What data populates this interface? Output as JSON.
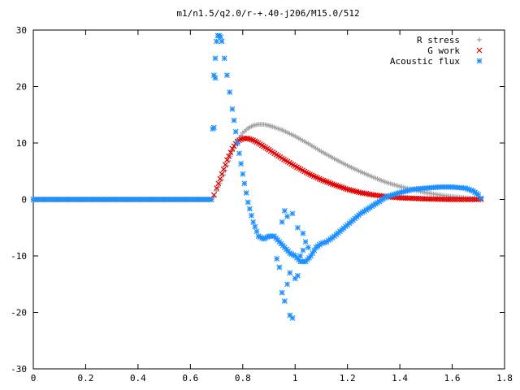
{
  "chart_data": {
    "type": "scatter",
    "title": "m1/n1.5/q2.0/r-+.40-j206/M15.0/512",
    "xlabel": "",
    "ylabel": "",
    "xlim": [
      0,
      1.8
    ],
    "ylim": [
      -30,
      30
    ],
    "x_ticks": [
      "0",
      "0.2",
      "0.4",
      "0.6",
      "0.8",
      "1",
      "1.2",
      "1.4",
      "1.6",
      "1.8"
    ],
    "y_ticks": [
      "30",
      "20",
      "10",
      "0",
      "-10",
      "-20",
      "-30"
    ],
    "x_tick_values": [
      0,
      0.2,
      0.4,
      0.6,
      0.8,
      1.0,
      1.2,
      1.4,
      1.6,
      1.8
    ],
    "y_tick_values": [
      30,
      20,
      10,
      0,
      -10,
      -20,
      -30
    ],
    "grid": false,
    "legend_position": "top-right",
    "series": [
      {
        "name": "R stress",
        "marker": "plus",
        "color": "#a0a0a0",
        "x": [
          0.0,
          0.1,
          0.2,
          0.3,
          0.4,
          0.5,
          0.6,
          0.68,
          0.69,
          0.7,
          0.72,
          0.74,
          0.76,
          0.78,
          0.8,
          0.82,
          0.84,
          0.86,
          0.88,
          0.9,
          0.92,
          0.95,
          1.0,
          1.05,
          1.1,
          1.15,
          1.2,
          1.25,
          1.3,
          1.35,
          1.4,
          1.45,
          1.5,
          1.55,
          1.6,
          1.65,
          1.7,
          1.71
        ],
        "y": [
          0,
          0,
          0,
          0,
          0,
          0,
          0,
          0,
          0.5,
          1.5,
          3.5,
          6.0,
          8.5,
          10.5,
          11.8,
          12.6,
          13.1,
          13.3,
          13.3,
          13.1,
          12.8,
          12.3,
          11.2,
          9.9,
          8.5,
          7.2,
          6.0,
          4.9,
          3.9,
          3.0,
          2.3,
          1.7,
          1.2,
          0.8,
          0.5,
          0.3,
          0.1,
          0
        ]
      },
      {
        "name": "G work",
        "marker": "cross",
        "color": "#e00000",
        "x": [
          0.0,
          0.1,
          0.2,
          0.3,
          0.4,
          0.5,
          0.6,
          0.68,
          0.69,
          0.7,
          0.72,
          0.74,
          0.76,
          0.78,
          0.8,
          0.82,
          0.84,
          0.86,
          0.88,
          0.9,
          0.95,
          1.0,
          1.05,
          1.1,
          1.15,
          1.2,
          1.25,
          1.3,
          1.35,
          1.4,
          1.45,
          1.5,
          1.55,
          1.6,
          1.65,
          1.7,
          1.71
        ],
        "y": [
          0,
          0,
          0,
          0,
          0,
          0,
          0,
          0,
          0.8,
          2.0,
          4.5,
          7.0,
          9.0,
          10.3,
          10.8,
          10.8,
          10.5,
          10.0,
          9.4,
          8.8,
          7.3,
          5.9,
          4.6,
          3.5,
          2.6,
          1.8,
          1.2,
          0.8,
          0.5,
          0.3,
          0.2,
          0.1,
          0.05,
          0,
          0,
          0,
          0
        ]
      },
      {
        "name": "Acoustic flux",
        "marker": "star",
        "color": "#1e90ff",
        "x": [
          0.0,
          0.1,
          0.2,
          0.3,
          0.4,
          0.5,
          0.6,
          0.68,
          0.685,
          0.69,
          0.695,
          0.7,
          0.705,
          0.71,
          0.715,
          0.72,
          0.73,
          0.74,
          0.75,
          0.76,
          0.78,
          0.8,
          0.82,
          0.84,
          0.86,
          0.88,
          0.9,
          0.92,
          0.94,
          0.96,
          0.98,
          1.0,
          1.02,
          1.04,
          1.06,
          1.08,
          1.1,
          1.12,
          1.15,
          1.2,
          1.25,
          1.3,
          1.35,
          1.4,
          1.45,
          1.5,
          1.55,
          1.6,
          1.65,
          1.68,
          1.7,
          1.71,
          0.69,
          0.695,
          0.94,
          0.95,
          0.96,
          0.97,
          0.98,
          0.99,
          1.0,
          1.01,
          1.02,
          1.03,
          1.04,
          0.93,
          0.95,
          0.97,
          0.99,
          1.01,
          1.03,
          1.05,
          0.96,
          0.98
        ],
        "y": [
          0,
          0,
          0,
          0,
          0,
          0,
          0,
          0,
          12.5,
          22.0,
          25.0,
          28.0,
          29.0,
          29.0,
          28.8,
          28.0,
          25.0,
          22.0,
          19.0,
          16.0,
          10.0,
          4.5,
          -0.5,
          -4.0,
          -6.5,
          -7.0,
          -6.5,
          -6.5,
          -7.5,
          -8.5,
          -9.5,
          -10.0,
          -11.0,
          -11.0,
          -10.0,
          -8.5,
          -7.8,
          -7.5,
          -6.5,
          -4.5,
          -2.5,
          -1.0,
          0.5,
          1.2,
          1.8,
          2.0,
          2.2,
          2.2,
          2.0,
          1.5,
          0.8,
          0.2,
          12.7,
          21.5,
          -12.0,
          -16.5,
          -18.0,
          -15.0,
          -13.0,
          -21.0,
          -14.0,
          -13.5,
          -10.0,
          -9.0,
          -7.5,
          -10.5,
          -4.0,
          -3.0,
          -2.5,
          -5.0,
          -6.0,
          -8.5,
          -2.0,
          -20.5
        ]
      }
    ]
  }
}
